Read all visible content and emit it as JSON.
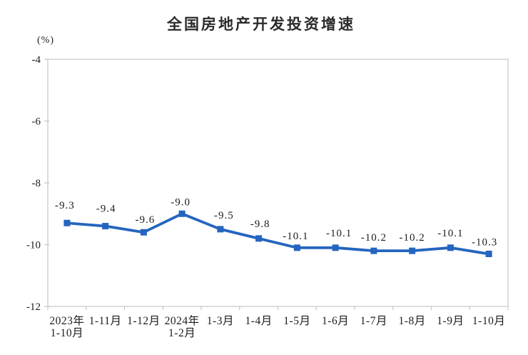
{
  "chart_data": {
    "type": "line",
    "title": "全国房地产开发投资增速",
    "ylabel": "(%)",
    "xlabel": "",
    "categories": [
      "2023年\n1-10月",
      "1-11月",
      "1-12月",
      "2024年\n1-2月",
      "1-3月",
      "1-4月",
      "1-5月",
      "1-6月",
      "1-7月",
      "1-8月",
      "1-9月",
      "1-10月"
    ],
    "values": [
      -9.3,
      -9.4,
      -9.6,
      -9.0,
      -9.5,
      -9.8,
      -10.1,
      -10.1,
      -10.2,
      -10.2,
      -10.1,
      -10.3
    ],
    "data_labels": [
      "-9.3",
      "-9.4",
      "-9.6",
      "-9.0",
      "-9.5",
      "-9.8",
      "-10.1",
      "-10.1",
      "-10.2",
      "-10.2",
      "-10.1",
      "-10.3"
    ],
    "ylim": [
      -12,
      -4
    ],
    "y_ticks": [
      -4,
      -6,
      -8,
      -10,
      -12
    ],
    "grid": false,
    "legend": false,
    "marker": "square",
    "line_color": "#2465BF",
    "axis_color": "#c6c6c6",
    "text_color": "#1c1c1c"
  }
}
